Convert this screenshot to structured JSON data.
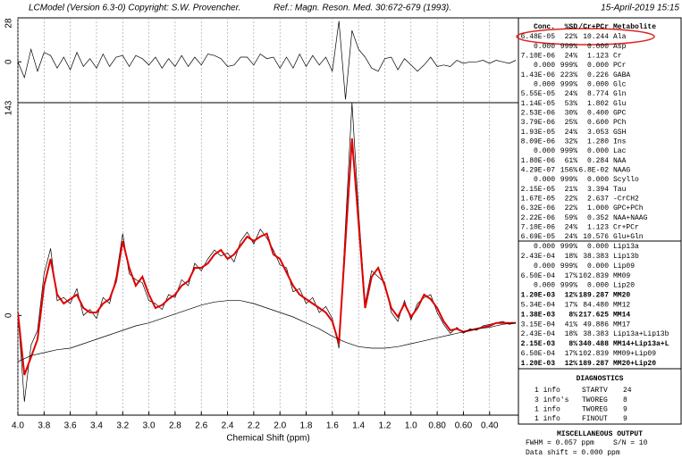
{
  "header": {
    "left": "LCModel (Version 6.3-0) Copyright: S.W. Provencher.",
    "ref": "Ref.: Magn. Reson. Med. 30:672-679 (1993).",
    "date": "15-April-2019  15:15"
  },
  "chart_data": [
    {
      "type": "line",
      "ylim": [
        -26,
        28
      ],
      "yticks": [
        0,
        28
      ],
      "xlim": [
        4.0,
        0.18
      ],
      "x": [
        4.0,
        3.95,
        3.9,
        3.85,
        3.8,
        3.75,
        3.7,
        3.65,
        3.6,
        3.55,
        3.5,
        3.45,
        3.4,
        3.35,
        3.3,
        3.25,
        3.2,
        3.15,
        3.1,
        3.05,
        3.0,
        2.95,
        2.9,
        2.85,
        2.8,
        2.75,
        2.7,
        2.65,
        2.6,
        2.55,
        2.5,
        2.45,
        2.4,
        2.35,
        2.3,
        2.25,
        2.2,
        2.15,
        2.1,
        2.05,
        2.0,
        1.95,
        1.9,
        1.85,
        1.8,
        1.75,
        1.7,
        1.65,
        1.6,
        1.55,
        1.5,
        1.45,
        1.4,
        1.35,
        1.3,
        1.25,
        1.2,
        1.15,
        1.1,
        1.05,
        1.0,
        0.95,
        0.9,
        0.85,
        0.8,
        0.75,
        0.7,
        0.65,
        0.6,
        0.55,
        0.5,
        0.45,
        0.4,
        0.35,
        0.3,
        0.25,
        0.2
      ],
      "series": [
        {
          "color": "#000000",
          "values": [
            0,
            -10,
            8,
            -6,
            6,
            4,
            -4,
            3,
            -5,
            6,
            -3,
            2,
            -4,
            5,
            -3,
            3,
            4,
            -3,
            4,
            2,
            -2,
            3,
            -4,
            2,
            -3,
            4,
            -3,
            3,
            -2,
            5,
            4,
            2,
            -3,
            -2,
            3,
            3,
            -2,
            5,
            2,
            3,
            -4,
            3,
            -4,
            5,
            -3,
            4,
            -2,
            3,
            -6,
            26,
            -24,
            20,
            8,
            3,
            -4,
            -6,
            2,
            3,
            -5,
            2,
            -2,
            -6,
            -2,
            3,
            -3,
            -2,
            -3,
            1,
            -1,
            0,
            0,
            1,
            -1,
            1,
            0,
            -1,
            1
          ]
        }
      ]
    },
    {
      "type": "line",
      "xlabel": "Chemical Shift (ppm)",
      "ylim": [
        -67,
        143
      ],
      "yticks": [
        0,
        143
      ],
      "xlim": [
        4.0,
        0.18
      ],
      "xticks": [
        {
          "value": 4.0,
          "label": "4.0"
        },
        3.8,
        3.6,
        3.4,
        3.2,
        {
          "value": 3.0,
          "label": "3.0"
        },
        2.8,
        2.6,
        2.4,
        2.2,
        {
          "value": 2.0,
          "label": "2.0"
        },
        1.8,
        1.6,
        1.4,
        1.2,
        {
          "value": 1.0,
          "label": "1.0"
        },
        {
          "value": 0.8,
          "label": "0.80"
        },
        {
          "value": 0.6,
          "label": "0.60"
        },
        {
          "value": 0.4,
          "label": "0.40"
        }
      ],
      "grid": true,
      "x": [
        4.0,
        3.95,
        3.9,
        3.85,
        3.8,
        3.75,
        3.7,
        3.65,
        3.6,
        3.55,
        3.5,
        3.45,
        3.4,
        3.35,
        3.3,
        3.25,
        3.2,
        3.15,
        3.1,
        3.05,
        3.0,
        2.95,
        2.9,
        2.85,
        2.8,
        2.75,
        2.7,
        2.65,
        2.6,
        2.55,
        2.5,
        2.45,
        2.4,
        2.35,
        2.3,
        2.25,
        2.2,
        2.15,
        2.1,
        2.05,
        2.0,
        1.95,
        1.9,
        1.85,
        1.8,
        1.75,
        1.7,
        1.65,
        1.6,
        1.55,
        1.5,
        1.45,
        1.4,
        1.35,
        1.3,
        1.25,
        1.2,
        1.15,
        1.1,
        1.05,
        1.0,
        0.95,
        0.9,
        0.85,
        0.8,
        0.75,
        0.7,
        0.65,
        0.6,
        0.55,
        0.5,
        0.45,
        0.4,
        0.35,
        0.3,
        0.25,
        0.2
      ],
      "series": [
        {
          "color": "#000000",
          "values": [
            2,
            -58,
            -20,
            -10,
            28,
            45,
            10,
            12,
            8,
            18,
            0,
            4,
            -2,
            12,
            8,
            26,
            55,
            28,
            24,
            22,
            10,
            8,
            4,
            14,
            12,
            24,
            20,
            35,
            30,
            38,
            44,
            40,
            42,
            36,
            50,
            56,
            48,
            58,
            52,
            44,
            34,
            32,
            16,
            18,
            8,
            12,
            2,
            6,
            -2,
            -22,
            60,
            143,
            70,
            8,
            30,
            26,
            22,
            2,
            -4,
            10,
            -3,
            8,
            12,
            14,
            2,
            -6,
            -12,
            -8,
            -12,
            -9,
            -10,
            -7,
            -6,
            -5,
            -4,
            -6,
            -5
          ]
        },
        {
          "color": "#e00000",
          "values": [
            2,
            -40,
            -28,
            -16,
            20,
            38,
            14,
            8,
            11,
            14,
            5,
            2,
            2,
            8,
            11,
            23,
            50,
            32,
            20,
            26,
            14,
            5,
            7,
            11,
            14,
            20,
            23,
            32,
            32,
            35,
            41,
            44,
            38,
            41,
            47,
            53,
            50,
            53,
            55,
            41,
            38,
            29,
            20,
            14,
            11,
            8,
            5,
            2,
            -4,
            -19,
            50,
            119,
            62,
            5,
            26,
            32,
            20,
            5,
            -1,
            8,
            -1,
            5,
            14,
            11,
            5,
            -4,
            -10,
            -9,
            -11,
            -10,
            -9,
            -8,
            -7,
            -5,
            -5,
            -5,
            -5
          ]
        },
        {
          "color": "#000000",
          "x": [
            4.0,
            3.9,
            3.8,
            3.7,
            3.6,
            3.5,
            3.4,
            3.3,
            3.2,
            3.1,
            3.0,
            2.9,
            2.8,
            2.7,
            2.6,
            2.5,
            2.4,
            2.3,
            2.2,
            2.1,
            2.0,
            1.9,
            1.8,
            1.7,
            1.6,
            1.5,
            1.4,
            1.3,
            1.2,
            1.1,
            1.0,
            0.9,
            0.8,
            0.7,
            0.6,
            0.5,
            0.4,
            0.3,
            0.2
          ],
          "values": [
            -31,
            -27,
            -25,
            -23,
            -22,
            -19,
            -16,
            -13,
            -10,
            -7,
            -5,
            -2,
            1,
            4,
            7,
            9,
            10,
            10,
            8,
            5,
            2,
            -1,
            -5,
            -9,
            -14,
            -18,
            -21,
            -22,
            -22,
            -21,
            -19,
            -17,
            -15,
            -13,
            -11,
            -9,
            -8,
            -6,
            -5
          ]
        }
      ]
    }
  ],
  "metabolites": {
    "header": [
      "Conc.",
      "%SD",
      "/Cr+PCr",
      "Metabolite"
    ],
    "groups": [
      [
        {
          "cells": [
            "6.48E-05",
            "22%",
            "10.244",
            "Ala"
          ]
        },
        {
          "cells": [
            "0.000",
            "999%",
            "0.000",
            "Asp"
          ]
        },
        {
          "cells": [
            "7.10E-06",
            "24%",
            "1.123",
            "Cr"
          ]
        },
        {
          "cells": [
            "0.000",
            "999%",
            "0.000",
            "PCr"
          ]
        },
        {
          "cells": [
            "1.43E-06",
            "223%",
            "0.226",
            "GABA"
          ]
        },
        {
          "cells": [
            "0.000",
            "999%",
            "0.000",
            "Glc"
          ]
        },
        {
          "cells": [
            "5.55E-05",
            "24%",
            "8.774",
            "Gln"
          ]
        },
        {
          "cells": [
            "1.14E-05",
            "53%",
            "1.802",
            "Glu"
          ]
        },
        {
          "cells": [
            "2.53E-06",
            "30%",
            "0.400",
            "GPC"
          ]
        },
        {
          "cells": [
            "3.79E-06",
            "25%",
            "0.600",
            "PCh"
          ]
        },
        {
          "cells": [
            "1.93E-05",
            "24%",
            "3.053",
            "GSH"
          ]
        },
        {
          "cells": [
            "8.09E-06",
            "32%",
            "1.280",
            "Ins"
          ]
        },
        {
          "cells": [
            "0.000",
            "999%",
            "0.000",
            "Lac"
          ]
        },
        {
          "cells": [
            "1.80E-06",
            "61%",
            "0.284",
            "NAA"
          ]
        },
        {
          "cells": [
            "4.29E-07",
            "156%",
            "6.8E-02",
            "NAAG"
          ]
        },
        {
          "cells": [
            "0.000",
            "999%",
            "0.000",
            "Scyllo"
          ]
        },
        {
          "cells": [
            "2.15E-05",
            "21%",
            "3.394",
            "Tau"
          ]
        },
        {
          "cells": [
            "1.67E-05",
            "22%",
            "2.637",
            "-CrCH2"
          ]
        },
        {
          "cells": [
            "6.32E-06",
            "22%",
            "1.000",
            "GPC+PCh"
          ]
        },
        {
          "cells": [
            "2.22E-06",
            "59%",
            "0.352",
            "NAA+NAAG"
          ]
        },
        {
          "cells": [
            "7.10E-06",
            "24%",
            "1.123",
            "Cr+PCr"
          ]
        },
        {
          "cells": [
            "6.69E-05",
            "24%",
            "10.576",
            "Glu+Gln"
          ]
        }
      ],
      [
        {
          "cells": [
            "0.000",
            "999%",
            "0.000",
            "Lip13a"
          ]
        },
        {
          "cells": [
            "2.43E-04",
            "18%",
            "38.383",
            "Lip13b"
          ]
        },
        {
          "cells": [
            "0.000",
            "999%",
            "0.000",
            "Lip09"
          ]
        },
        {
          "cells": [
            "6.50E-04",
            "17%",
            "102.839",
            "MM09"
          ]
        },
        {
          "cells": [
            "0.000",
            "999%",
            "0.000",
            "Lip20"
          ]
        },
        {
          "cells": [
            "1.20E-03",
            "12%",
            "189.287",
            "MM20"
          ],
          "color": "#0000ee"
        },
        {
          "cells": [
            "5.34E-04",
            "17%",
            "84.480",
            "MM12"
          ]
        },
        {
          "cells": [
            "1.38E-03",
            "8%",
            "217.625",
            "MM14"
          ],
          "color": "#0000ee"
        },
        {
          "cells": [
            "3.15E-04",
            "41%",
            "49.886",
            "MM17"
          ]
        },
        {
          "cells": [
            "2.43E-04",
            "18%",
            "38.383",
            "Lip13a+Lip13b"
          ]
        },
        {
          "cells": [
            "2.15E-03",
            "8%",
            "340.488",
            "MM14+Lip13a+L"
          ],
          "color": "#0000ee"
        },
        {
          "cells": [
            "6.50E-04",
            "17%",
            "102.839",
            "MM09+Lip09"
          ]
        },
        {
          "cells": [
            "1.20E-03",
            "12%",
            "189.287",
            "MM20+Lip20"
          ],
          "color": "#0000ee"
        }
      ]
    ]
  },
  "diagnostics": {
    "title": "DIAGNOSTICS",
    "rows": [
      [
        "1 info",
        "STARTV",
        "24"
      ],
      [
        "3 info's",
        "TWOREG",
        "8"
      ],
      [
        "1 info",
        "TWOREG",
        "9"
      ],
      [
        "1 info",
        "FINOUT",
        "9"
      ]
    ]
  },
  "misc": {
    "title": "MISCELLANEOUS OUTPUT",
    "fwhm": "FWHM = 0.057 ppm",
    "sn": "S/N =  10",
    "shift": "Data shift = 0.000 ppm"
  }
}
